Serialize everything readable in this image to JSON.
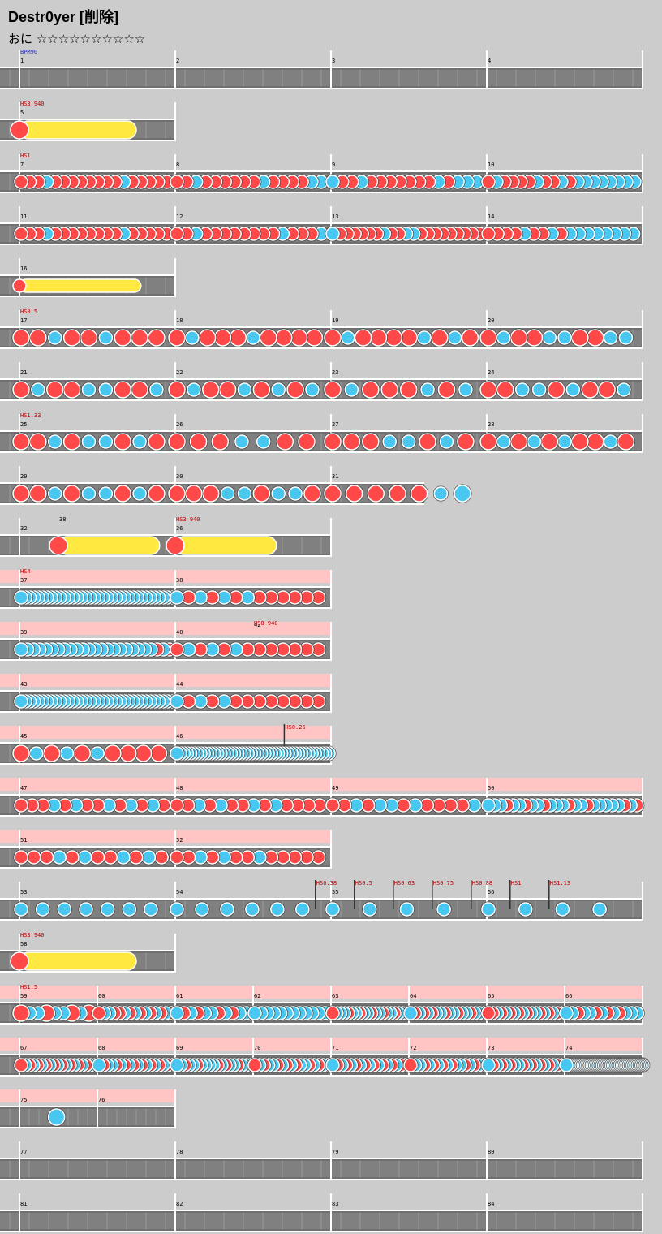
{
  "title": "Destr0yer [削除]",
  "difficulty": "おに ☆☆☆☆☆☆☆☆☆☆",
  "colors": {
    "don": "#ff4848",
    "ka": "#48c8f0",
    "roll": "#ffe840",
    "gogo": "#ffc4c4",
    "lane": "#808080",
    "bg": "#cccccc"
  },
  "rows": [
    {
      "len": 4,
      "bars": [
        1,
        2,
        3,
        4
      ],
      "labels": [
        {
          "b": 0,
          "t": "BPM90",
          "c": "#3030b0"
        }
      ],
      "notes": []
    },
    {
      "len": 1,
      "bars": [
        5
      ],
      "labels": [
        {
          "b": 0,
          "t": "HS3 940",
          "c": "#c00000"
        }
      ],
      "notes": [],
      "rolls": [
        [
          0,
          0.75,
          "b"
        ]
      ]
    },
    {
      "len": 4,
      "bars": [
        7,
        8,
        9,
        10
      ],
      "labels": [
        {
          "b": 0,
          "t": "HS1",
          "c": "#c00000"
        }
      ],
      "notes": [
        [
          0,
          "DdDkDDDDDDDDkDDDDD"
        ],
        [
          1,
          "DDkDDDDDDkDDDDkk"
        ],
        [
          2,
          "kDDkDDDDDDDkDkkk"
        ],
        [
          3,
          "DkDDDDkDDkDkkkkkkkk"
        ]
      ]
    },
    {
      "len": 4,
      "bars": [
        11,
        12,
        13,
        14
      ],
      "notes": [
        [
          0,
          "DDDkDDDDDDDDkDDDDD"
        ],
        [
          1,
          "DDkDDDDDDDDkDDDk"
        ],
        [
          2,
          "kDDDDDDkDDkkDDDDDDDDD"
        ],
        [
          3,
          "DDDDkDDkDkkkkkkkk"
        ]
      ]
    },
    {
      "len": 1,
      "bars": [
        16
      ],
      "notes": [],
      "rolls": [
        [
          0,
          0.78,
          "s"
        ]
      ]
    },
    {
      "len": 4,
      "bars": [
        17,
        18,
        19,
        20
      ],
      "labels": [
        {
          "b": 0,
          "t": "HS0.5",
          "c": "#c00000"
        }
      ],
      "notes": [
        [
          0,
          "DDkDDkDDD"
        ],
        [
          1,
          "DkDDDkDDDD"
        ],
        [
          2,
          "DkDDDDkDkD"
        ],
        [
          3,
          "DkDDkkDDkk"
        ]
      ]
    },
    {
      "len": 4,
      "bars": [
        21,
        22,
        23,
        24
      ],
      "notes": [
        [
          0,
          "DkDDkkDDk"
        ],
        [
          1,
          "DkDDkDkDk"
        ],
        [
          2,
          "DkDDDkDk"
        ],
        [
          3,
          "DDkkDkDDk"
        ]
      ]
    },
    {
      "len": 4,
      "bars": [
        25,
        26,
        27,
        28
      ],
      "labels": [
        {
          "b": 0,
          "t": "HS1.33",
          "c": "#c00000"
        }
      ],
      "notes": [
        [
          0,
          "DDkDkkDkD"
        ],
        [
          1,
          "DDDkkDD"
        ],
        [
          2,
          "DDDkkDkD"
        ],
        [
          3,
          "DkDkDkDDkD"
        ]
      ]
    },
    {
      "len": 2.6,
      "bars": [
        29,
        30,
        31
      ],
      "notes": [
        [
          0,
          "DDkDkkDkD"
        ],
        [
          1,
          "DDDkkDkkD"
        ],
        [
          2,
          "DDDDDkK"
        ]
      ]
    },
    {
      "len": 2,
      "bars": [
        32,
        36
      ],
      "labels": [
        {
          "b": 0.25,
          "t": "38",
          "c": "#000000"
        },
        {
          "b": 1,
          "t": "HS3 940",
          "c": "#c00000"
        }
      ],
      "notes": [],
      "rolls": [
        [
          0.25,
          0.65,
          "b"
        ],
        [
          1,
          0.65,
          "b"
        ]
      ]
    },
    {
      "len": 2,
      "gogo": true,
      "bars": [
        37,
        38
      ],
      "labels": [
        {
          "b": 0,
          "t": "HS4",
          "c": "#c00000"
        }
      ],
      "notes": [
        [
          0,
          "kkkkkkkkkkkkkkkkkkkkkkkkkkkkkkkkkkkk"
        ],
        [
          1,
          "kDkDkDkDDDDDD"
        ]
      ]
    },
    {
      "len": 2,
      "gogo": true,
      "bars": [
        39,
        40
      ],
      "labels": [
        {
          "b": 1.5,
          "t": "HS8 940",
          "c": "#c00000"
        },
        {
          "b": 1.5,
          "t": "42",
          "c": "#000000",
          "y": 12
        }
      ],
      "notes": [
        [
          0,
          "kkkkkkkkkkkkkkkkkkkkkkDkD"
        ],
        [
          1,
          "DkDkDkDDDDDDD"
        ]
      ]
    },
    {
      "len": 2,
      "gogo": true,
      "bars": [
        43,
        44
      ],
      "notes": [
        [
          0,
          "kkkkkkkkkkkkkkkkkkkkkkkkkkkkkkkkkkkD"
        ],
        [
          1,
          "kDkDkDDDDDDDD"
        ]
      ]
    },
    {
      "len": 2,
      "gogo": true,
      "bars": [
        45,
        46
      ],
      "labels": [
        {
          "b": 1.7,
          "t": "HS0.25",
          "c": "#c00000",
          "mark": true
        }
      ],
      "notes": [
        [
          0,
          "DkDkDkDDDD"
        ],
        [
          1,
          "kkkkkkkkkkkkkkkkkkkkkkkkkkkkkkkkkkkkkkkkkkkkkk"
        ]
      ]
    },
    {
      "len": 4,
      "gogo": true,
      "bars": [
        47,
        48,
        49,
        50
      ],
      "notes": [
        [
          0,
          "DDDkDkDDkDkDkD"
        ],
        [
          1,
          "DDkDkDDkDkDDDD"
        ],
        [
          2,
          "DDkDkkDkDDDDk"
        ],
        [
          3,
          "kkkDkkDkkDkkkDkkDkkkkkDkD"
        ]
      ]
    },
    {
      "len": 2,
      "gogo": true,
      "bars": [
        51,
        52
      ],
      "notes": [
        [
          0,
          "DDDkDkDDkDkD"
        ],
        [
          1,
          "DDkDkDDkDDDDD"
        ]
      ]
    },
    {
      "len": 4,
      "bars": [
        53,
        54,
        55,
        56
      ],
      "labels": [
        {
          "b": 1.9,
          "t": "HS0.38",
          "c": "#c00000",
          "mark": true
        },
        {
          "b": 2.15,
          "t": "HS0.5",
          "c": "#c00000",
          "mark": true
        },
        {
          "b": 2.4,
          "t": "HS0.63",
          "c": "#c00000",
          "mark": true
        },
        {
          "b": 2.65,
          "t": "HS0.75",
          "c": "#c00000",
          "mark": true
        },
        {
          "b": 2.9,
          "t": "HS0.88",
          "c": "#c00000",
          "mark": true
        },
        {
          "b": 3.15,
          "t": "HS1",
          "c": "#c00000",
          "mark": true
        },
        {
          "b": 3.4,
          "t": "HS1.13",
          "c": "#c00000",
          "mark": true
        }
      ],
      "notes": [
        [
          0,
          "kkkkkkk"
        ],
        [
          1,
          "kkkkkk"
        ],
        [
          2,
          "kkkk"
        ],
        [
          3,
          "kkkk"
        ]
      ]
    },
    {
      "len": 1,
      "bars": [
        58
      ],
      "labels": [
        {
          "b": 0,
          "t": "HS3 940",
          "c": "#c00000"
        }
      ],
      "notes": [],
      "rolls": [
        [
          0,
          0.75,
          "b"
        ]
      ]
    },
    {
      "len": 8,
      "w": 96,
      "gogo": true,
      "bars": [
        59,
        60,
        61,
        62,
        63,
        64,
        65,
        66
      ],
      "labels": [
        {
          "b": 0,
          "t": "HS1.5",
          "c": "#c00000"
        }
      ],
      "notes": [
        [
          0,
          "DkkDkkDkD"
        ],
        [
          1,
          "DkkDDkDkDkDkDkD"
        ],
        [
          2,
          "kDkDkkDkDkk"
        ],
        [
          3,
          "kkkkkkkkkkkk"
        ],
        [
          4,
          "DkkkDkkDkkDkkDkkDkkD"
        ],
        [
          5,
          "kDkDkDkkDkkDkkDkkD"
        ],
        [
          6,
          "DDkDkDkDkDkkDkDkDk"
        ],
        [
          7,
          "kkDkkDkDkDkkk"
        ]
      ]
    },
    {
      "len": 8,
      "w": 96,
      "gogo": true,
      "bars": [
        67,
        68,
        69,
        70,
        71,
        72,
        73,
        74
      ],
      "notes": [
        [
          0,
          "DkDkDkDkDkDkDkDkDkD"
        ],
        [
          1,
          "kDkkDkDkDkDkDkDkDk"
        ],
        [
          2,
          "kkDkkDkkkkDkDkkDkkk"
        ],
        [
          3,
          "DkDkkDkDkDkkDkDkD"
        ],
        [
          4,
          "kDkDkDkDkDkDkDkDk"
        ],
        [
          5,
          "DkkDkDkDkDkkDkDkD"
        ],
        [
          6,
          "kDkDkDkkDkDkDkDkDk"
        ],
        [
          7,
          "kkkkkkkkkkkkkkkkkkkkkkkkkkkkkkkkkkkkkkkkkkkkkkkkkkkk"
        ]
      ]
    },
    {
      "len": 2,
      "w": 96,
      "gogo": true,
      "bars": [
        75,
        76
      ],
      "notes": [
        [
          0,
          "-K"
        ]
      ]
    },
    {
      "len": 4,
      "bars": [
        77,
        78,
        79,
        80
      ],
      "notes": []
    },
    {
      "len": 4,
      "bars": [
        81,
        82,
        83,
        84
      ],
      "notes": []
    }
  ]
}
